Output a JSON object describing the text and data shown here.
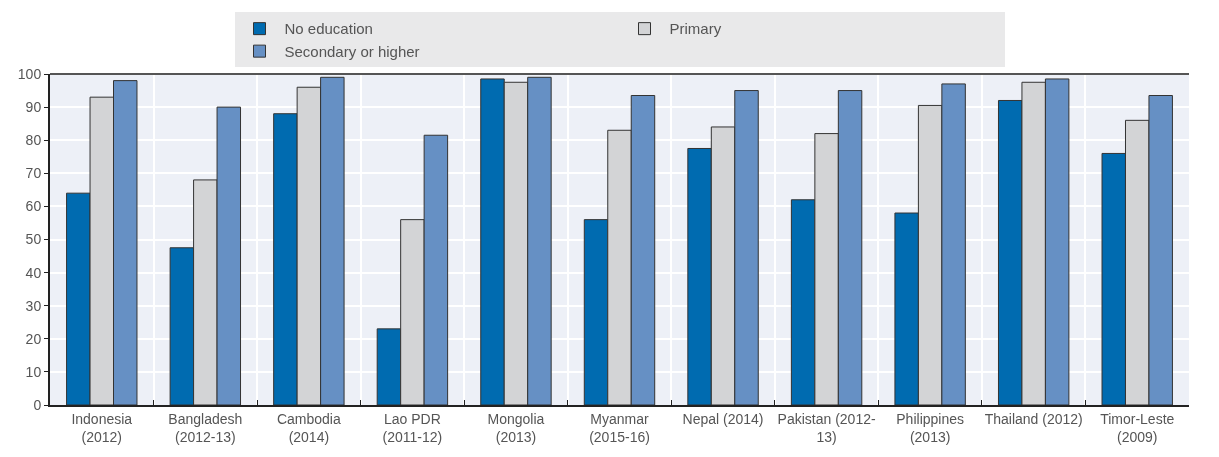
{
  "chart_data": {
    "type": "bar",
    "categories": [
      "Indonesia\n(2012)",
      "Bangladesh\n(2012-13)",
      "Cambodia\n(2014)",
      "Lao PDR\n(2011-12)",
      "Mongolia\n(2013)",
      "Myanmar\n(2015-16)",
      "Nepal (2014)",
      "Pakistan (2012-\n13)",
      "Philippines\n(2013)",
      "Thailand (2012)",
      "Timor-Leste\n(2009)"
    ],
    "series": [
      {
        "name": "No education",
        "color": "#006bb0",
        "values": [
          64,
          47.5,
          88,
          23,
          98.5,
          56,
          77.5,
          62,
          58,
          92,
          76
        ]
      },
      {
        "name": "Primary",
        "color": "#d3d4d6",
        "values": [
          93,
          68,
          96,
          56,
          97.5,
          83,
          84,
          82,
          90.5,
          97.5,
          86
        ]
      },
      {
        "name": "Secondary or higher",
        "color": "#6690c4",
        "values": [
          98,
          90,
          99,
          81.5,
          99,
          93.5,
          95,
          95,
          97,
          98.5,
          93.5
        ]
      }
    ],
    "ylim": [
      0,
      100
    ],
    "yticks": [
      0,
      10,
      20,
      30,
      40,
      50,
      60,
      70,
      80,
      90,
      100
    ],
    "grid": true,
    "legend": "top"
  }
}
